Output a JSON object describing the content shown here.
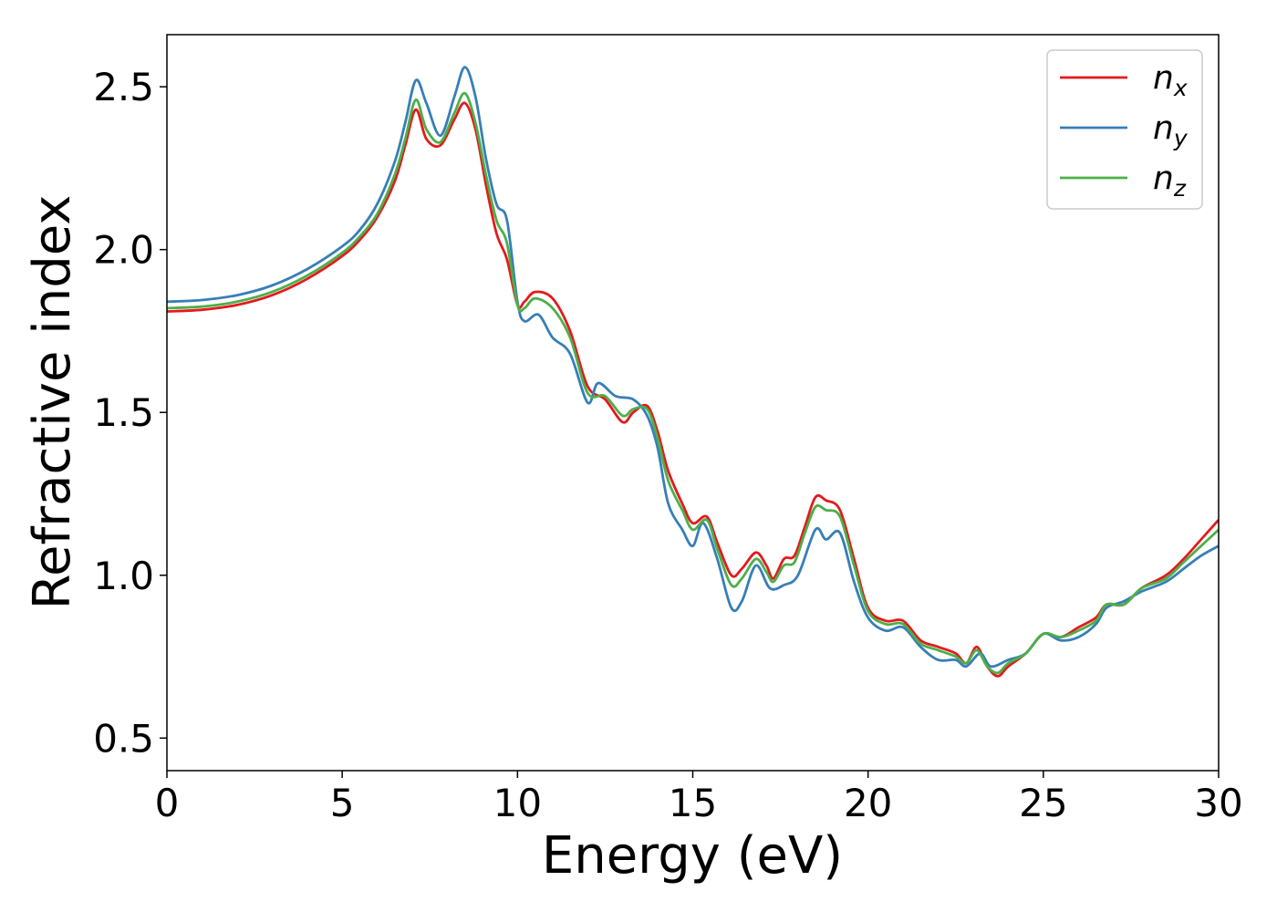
{
  "chart_data": {
    "type": "line",
    "xlabel": "Energy (eV)",
    "ylabel": "Refractive index",
    "xlim": [
      0,
      30
    ],
    "ylim": [
      0.4,
      2.66
    ],
    "xticks": [
      0,
      5,
      10,
      15,
      20,
      25,
      30
    ],
    "yticks": [
      0.5,
      1.0,
      1.5,
      2.0,
      2.5
    ],
    "grid": false,
    "legend_position": "top-right",
    "series": [
      {
        "name": "n_x",
        "label_base": "n",
        "label_sub": "x",
        "color": "#e41a1c",
        "points": [
          [
            0,
            1.81
          ],
          [
            1,
            1.815
          ],
          [
            2,
            1.83
          ],
          [
            3,
            1.86
          ],
          [
            4,
            1.91
          ],
          [
            5,
            1.98
          ],
          [
            5.5,
            2.03
          ],
          [
            6,
            2.1
          ],
          [
            6.5,
            2.21
          ],
          [
            6.8,
            2.32
          ],
          [
            7.1,
            2.43
          ],
          [
            7.4,
            2.34
          ],
          [
            7.8,
            2.32
          ],
          [
            8.2,
            2.4
          ],
          [
            8.5,
            2.45
          ],
          [
            8.8,
            2.37
          ],
          [
            9.1,
            2.2
          ],
          [
            9.4,
            2.05
          ],
          [
            9.7,
            1.97
          ],
          [
            10,
            1.83
          ],
          [
            10.2,
            1.84
          ],
          [
            10.5,
            1.87
          ],
          [
            11,
            1.85
          ],
          [
            11.5,
            1.75
          ],
          [
            12,
            1.58
          ],
          [
            12.5,
            1.54
          ],
          [
            13,
            1.47
          ],
          [
            13.3,
            1.5
          ],
          [
            13.7,
            1.52
          ],
          [
            14,
            1.44
          ],
          [
            14.3,
            1.32
          ],
          [
            14.7,
            1.22
          ],
          [
            15,
            1.16
          ],
          [
            15.4,
            1.18
          ],
          [
            15.7,
            1.1
          ],
          [
            16.1,
            1.0
          ],
          [
            16.4,
            1.02
          ],
          [
            16.8,
            1.07
          ],
          [
            17.1,
            1.03
          ],
          [
            17.3,
            0.99
          ],
          [
            17.6,
            1.05
          ],
          [
            17.9,
            1.06
          ],
          [
            18.2,
            1.15
          ],
          [
            18.5,
            1.24
          ],
          [
            18.8,
            1.23
          ],
          [
            19.2,
            1.2
          ],
          [
            19.6,
            1.05
          ],
          [
            20,
            0.9
          ],
          [
            20.5,
            0.86
          ],
          [
            21,
            0.86
          ],
          [
            21.5,
            0.8
          ],
          [
            22,
            0.78
          ],
          [
            22.5,
            0.76
          ],
          [
            22.8,
            0.73
          ],
          [
            23.1,
            0.78
          ],
          [
            23.4,
            0.72
          ],
          [
            23.7,
            0.69
          ],
          [
            24,
            0.72
          ],
          [
            24.5,
            0.76
          ],
          [
            25,
            0.82
          ],
          [
            25.5,
            0.81
          ],
          [
            26,
            0.84
          ],
          [
            26.5,
            0.87
          ],
          [
            26.8,
            0.91
          ],
          [
            27.3,
            0.91
          ],
          [
            27.8,
            0.96
          ],
          [
            28.5,
            1.0
          ],
          [
            29,
            1.05
          ],
          [
            29.5,
            1.11
          ],
          [
            30,
            1.17
          ]
        ]
      },
      {
        "name": "n_y",
        "label_base": "n",
        "label_sub": "y",
        "color": "#377eb8",
        "points": [
          [
            0,
            1.84
          ],
          [
            1,
            1.845
          ],
          [
            2,
            1.86
          ],
          [
            3,
            1.89
          ],
          [
            4,
            1.94
          ],
          [
            5,
            2.01
          ],
          [
            5.5,
            2.06
          ],
          [
            6,
            2.14
          ],
          [
            6.5,
            2.27
          ],
          [
            6.8,
            2.39
          ],
          [
            7.1,
            2.52
          ],
          [
            7.4,
            2.45
          ],
          [
            7.8,
            2.35
          ],
          [
            8.2,
            2.47
          ],
          [
            8.5,
            2.56
          ],
          [
            8.8,
            2.47
          ],
          [
            9.1,
            2.28
          ],
          [
            9.4,
            2.14
          ],
          [
            9.7,
            2.09
          ],
          [
            10,
            1.84
          ],
          [
            10.2,
            1.78
          ],
          [
            10.6,
            1.8
          ],
          [
            11,
            1.73
          ],
          [
            11.5,
            1.68
          ],
          [
            12,
            1.53
          ],
          [
            12.3,
            1.59
          ],
          [
            12.8,
            1.55
          ],
          [
            13.3,
            1.54
          ],
          [
            13.7,
            1.49
          ],
          [
            14,
            1.39
          ],
          [
            14.3,
            1.22
          ],
          [
            14.7,
            1.14
          ],
          [
            15,
            1.09
          ],
          [
            15.3,
            1.16
          ],
          [
            15.7,
            1.05
          ],
          [
            16.1,
            0.9
          ],
          [
            16.4,
            0.92
          ],
          [
            16.8,
            1.03
          ],
          [
            17.2,
            0.96
          ],
          [
            17.6,
            0.97
          ],
          [
            18,
            1.0
          ],
          [
            18.5,
            1.14
          ],
          [
            18.8,
            1.11
          ],
          [
            19.2,
            1.13
          ],
          [
            19.6,
            0.98
          ],
          [
            20,
            0.87
          ],
          [
            20.5,
            0.83
          ],
          [
            21,
            0.84
          ],
          [
            21.5,
            0.78
          ],
          [
            22,
            0.74
          ],
          [
            22.5,
            0.74
          ],
          [
            22.8,
            0.72
          ],
          [
            23.2,
            0.76
          ],
          [
            23.5,
            0.72
          ],
          [
            24,
            0.74
          ],
          [
            24.5,
            0.76
          ],
          [
            25,
            0.82
          ],
          [
            25.5,
            0.8
          ],
          [
            26,
            0.81
          ],
          [
            26.5,
            0.85
          ],
          [
            26.8,
            0.9
          ],
          [
            27.3,
            0.92
          ],
          [
            27.8,
            0.95
          ],
          [
            28.5,
            0.98
          ],
          [
            29,
            1.02
          ],
          [
            29.5,
            1.06
          ],
          [
            30,
            1.09
          ]
        ]
      },
      {
        "name": "n_z",
        "label_base": "n",
        "label_sub": "z",
        "color": "#4daf4a",
        "points": [
          [
            0,
            1.82
          ],
          [
            1,
            1.825
          ],
          [
            2,
            1.84
          ],
          [
            3,
            1.87
          ],
          [
            4,
            1.92
          ],
          [
            5,
            1.99
          ],
          [
            5.5,
            2.04
          ],
          [
            6,
            2.11
          ],
          [
            6.5,
            2.23
          ],
          [
            6.8,
            2.34
          ],
          [
            7.1,
            2.46
          ],
          [
            7.4,
            2.37
          ],
          [
            7.8,
            2.33
          ],
          [
            8.2,
            2.42
          ],
          [
            8.5,
            2.48
          ],
          [
            8.8,
            2.39
          ],
          [
            9.1,
            2.23
          ],
          [
            9.4,
            2.09
          ],
          [
            9.7,
            2.02
          ],
          [
            10,
            1.83
          ],
          [
            10.2,
            1.82
          ],
          [
            10.5,
            1.85
          ],
          [
            11,
            1.82
          ],
          [
            11.5,
            1.73
          ],
          [
            12,
            1.56
          ],
          [
            12.5,
            1.55
          ],
          [
            13,
            1.49
          ],
          [
            13.3,
            1.51
          ],
          [
            13.7,
            1.51
          ],
          [
            14,
            1.42
          ],
          [
            14.3,
            1.29
          ],
          [
            14.7,
            1.2
          ],
          [
            15,
            1.14
          ],
          [
            15.4,
            1.17
          ],
          [
            15.7,
            1.08
          ],
          [
            16.1,
            0.97
          ],
          [
            16.4,
            0.99
          ],
          [
            16.8,
            1.05
          ],
          [
            17.1,
            1.01
          ],
          [
            17.3,
            0.98
          ],
          [
            17.6,
            1.03
          ],
          [
            17.9,
            1.04
          ],
          [
            18.2,
            1.13
          ],
          [
            18.5,
            1.21
          ],
          [
            18.8,
            1.2
          ],
          [
            19.2,
            1.18
          ],
          [
            19.6,
            1.03
          ],
          [
            20,
            0.89
          ],
          [
            20.5,
            0.85
          ],
          [
            21,
            0.85
          ],
          [
            21.5,
            0.79
          ],
          [
            22,
            0.77
          ],
          [
            22.5,
            0.75
          ],
          [
            22.8,
            0.73
          ],
          [
            23.1,
            0.77
          ],
          [
            23.4,
            0.72
          ],
          [
            23.7,
            0.7
          ],
          [
            24,
            0.73
          ],
          [
            24.5,
            0.76
          ],
          [
            25,
            0.82
          ],
          [
            25.5,
            0.81
          ],
          [
            26,
            0.83
          ],
          [
            26.5,
            0.86
          ],
          [
            26.8,
            0.91
          ],
          [
            27.3,
            0.91
          ],
          [
            27.8,
            0.96
          ],
          [
            28.5,
            0.99
          ],
          [
            29,
            1.04
          ],
          [
            29.5,
            1.09
          ],
          [
            30,
            1.14
          ]
        ]
      }
    ]
  }
}
